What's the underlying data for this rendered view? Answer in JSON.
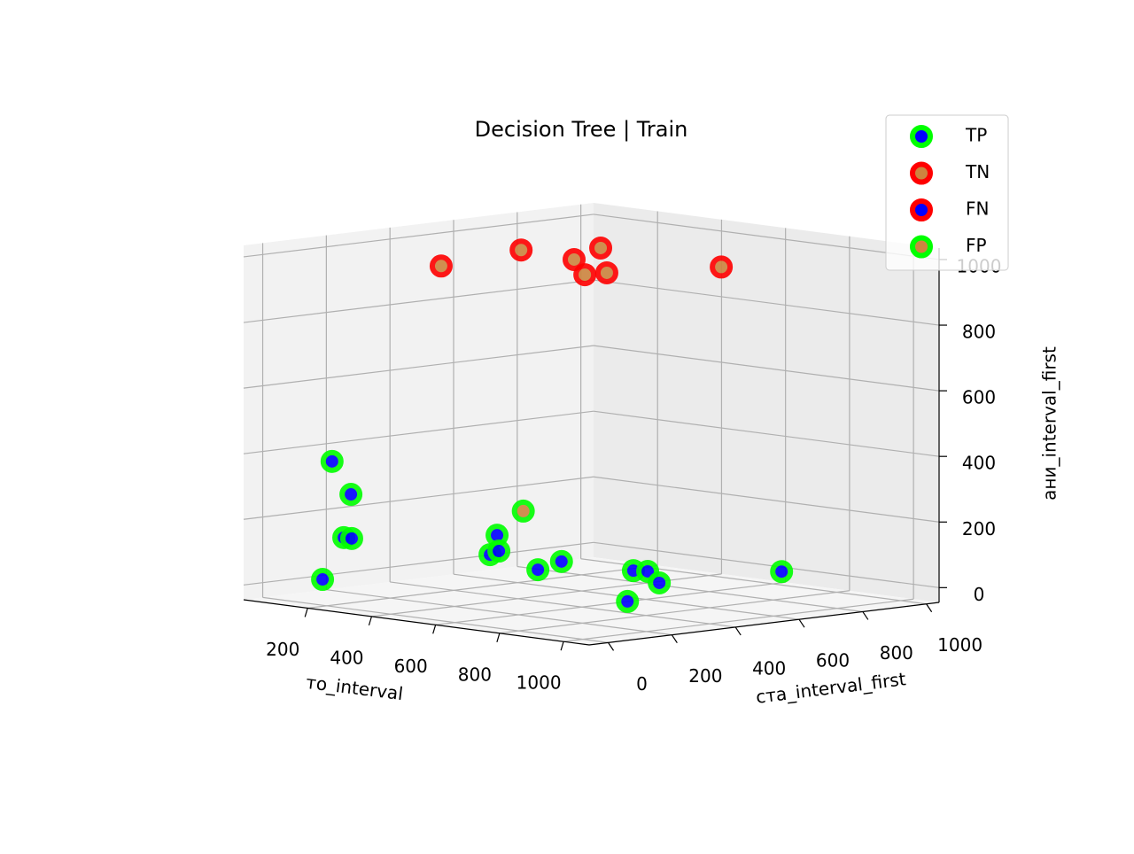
{
  "chart_data": {
    "type": "scatter3d",
    "title": "Decision Tree | Train",
    "xlabel": "то_interval",
    "ylabel": "ста_interval_first",
    "zlabel": "ани_interval_first",
    "xlim": [
      0,
      1080
    ],
    "ylim": [
      -60,
      1040
    ],
    "zlim": [
      -45,
      1035
    ],
    "xticks": [
      200,
      400,
      600,
      800,
      1000
    ],
    "yticks": [
      0,
      200,
      400,
      600,
      800,
      1000
    ],
    "zticks": [
      0,
      200,
      400,
      600,
      800,
      1000
    ],
    "grid": true,
    "legend_loc": "upper right",
    "series": [
      {
        "name": "TP",
        "edgecolor": "#00ff00",
        "facecolor": "#0000ff",
        "x": [
          464,
          442,
          415,
          701,
          720,
          726,
          716,
          807,
          981,
          167,
          226,
          149,
          119,
          192,
          697
        ],
        "y": [
          270,
          270,
          325,
          160,
          215,
          435,
          490,
          435,
          160,
          50,
          50,
          105,
          160,
          -5,
          930
        ],
        "z": [
          172,
          110,
          111,
          110,
          131,
          78,
          68,
          51,
          49,
          385,
          292,
          144,
          131,
          35,
          13
        ]
      },
      {
        "name": "TN",
        "edgecolor": "#ff0000",
        "facecolor": "#cd853f",
        "x": [
          508,
          211,
          486,
          241,
          629,
          643,
          946
        ],
        "y": [
          50,
          600,
          490,
          820,
          380,
          435,
          490
        ],
        "z": [
          1024,
          970,
          989,
          954,
          974,
          975,
          1025
        ]
      },
      {
        "name": "FN",
        "edgecolor": "#ff0000",
        "facecolor": "#0000ff",
        "x": [],
        "y": [],
        "z": []
      },
      {
        "name": "FP",
        "edgecolor": "#00ff00",
        "facecolor": "#cd853f",
        "x": [
          546
        ],
        "y": [
          270
        ],
        "z": [
          256
        ]
      }
    ]
  }
}
